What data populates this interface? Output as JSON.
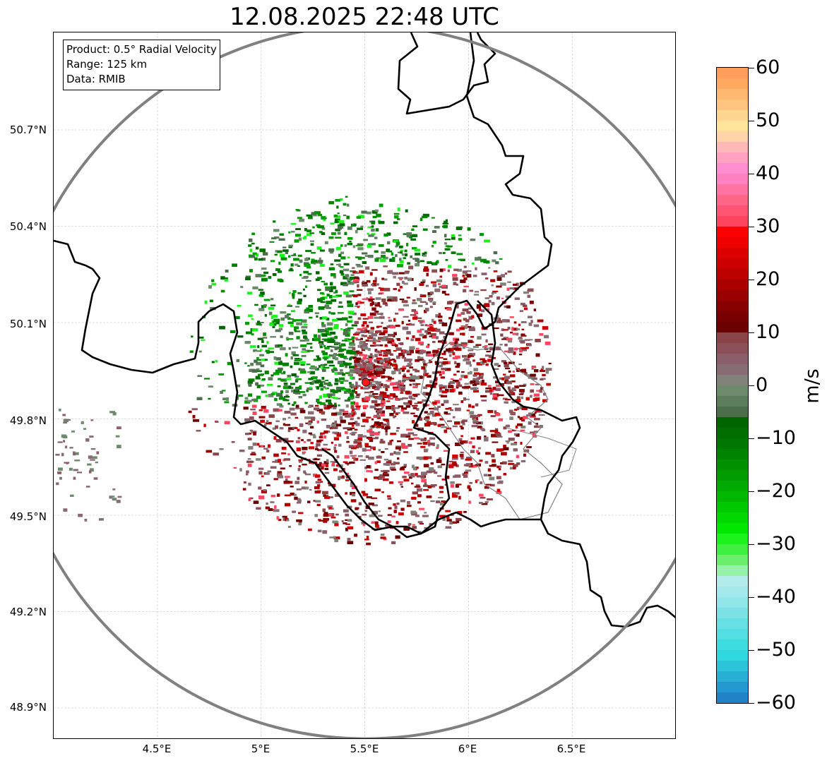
{
  "title": "12.08.2025 22:48 UTC",
  "info_box": {
    "product": "Product: 0.5° Radial Velocity",
    "range": "Range: 125 km",
    "data_source": "Data: RMIB"
  },
  "map": {
    "lon_range": [
      4.0,
      7.0
    ],
    "lat_range": [
      48.8,
      51.0
    ],
    "lon_ticks": [
      "4.5°E",
      "5°E",
      "5.5°E",
      "6°E",
      "6.5°E"
    ],
    "lat_ticks": [
      "50.7°N",
      "50.4°N",
      "50.1°N",
      "49.8°N",
      "49.5°N",
      "49.2°N",
      "48.9°N"
    ],
    "grid": true,
    "radar_site": {
      "lon": 5.505,
      "lat": 49.914,
      "color": "#ff1a1a"
    },
    "range_ring_color": "#808080",
    "border_color": "#000000",
    "internal_border_color": "#808080"
  },
  "colorbar": {
    "unit": "m/s",
    "min": -60,
    "max": 60,
    "tick_labels": [
      "60",
      "50",
      "40",
      "30",
      "20",
      "10",
      "0",
      "−10",
      "−20",
      "−30",
      "−40",
      "−50",
      "−60"
    ],
    "colors_top_to_bottom": [
      "#ff9d5c",
      "#ffa862",
      "#ffb870",
      "#ffc580",
      "#ffd690",
      "#ffe49c",
      "#ffd4a8",
      "#ffb8b8",
      "#ffa2c2",
      "#ff8fd0",
      "#ff82c0",
      "#ff74a2",
      "#ff6688",
      "#ff5474",
      "#ff4460",
      "#ff0000",
      "#ee0000",
      "#dd0000",
      "#cc0000",
      "#bb0000",
      "#aa0000",
      "#990000",
      "#880000",
      "#770000",
      "#6a0000",
      "#8a4448",
      "#8b5058",
      "#8a5e6a",
      "#876c74",
      "#83827a",
      "#6e8a6c",
      "#5d7c5c",
      "#4c6e4c",
      "#006400",
      "#006e00",
      "#007800",
      "#008400",
      "#009000",
      "#009c00",
      "#00aa00",
      "#00b800",
      "#00c800",
      "#00d800",
      "#00e800",
      "#1cf21c",
      "#40f040",
      "#6cef6c",
      "#96f2a8",
      "#b4ecec",
      "#a4eaec",
      "#90e6e8",
      "#7ce2e6",
      "#66e0e4",
      "#52dee2",
      "#3cdce0",
      "#2ed8de",
      "#2cc4d8",
      "#28b0d4",
      "#2498d0",
      "#2182c8"
    ]
  }
}
